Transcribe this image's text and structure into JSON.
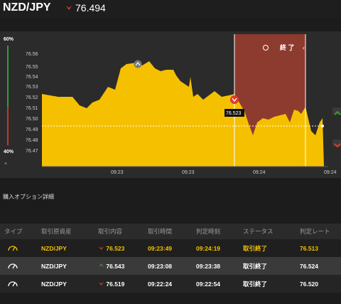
{
  "header": {
    "pair": "NZD/JPY",
    "price": "76.494"
  },
  "gauge": {
    "top_pct": "60%",
    "bottom_pct": "40%",
    "close_label": "×"
  },
  "chart": {
    "y_ticks": [
      "76.56",
      "76.55",
      "76.54",
      "76.53",
      "76.52",
      "76.51",
      "76.50",
      "76.49",
      "76.48",
      "76.47"
    ],
    "x_ticks": [
      "09:23",
      "09:23",
      "09:24",
      "09:24"
    ],
    "entry_label": "76.523",
    "end_label": "終 了",
    "line_color": "#f5c000",
    "zone_color": "#8e3b2f"
  },
  "details": {
    "title": "購入オプション詳細",
    "columns": [
      "タイプ",
      "取引原資産",
      "取引内容",
      "取引時間",
      "判定時刻",
      "ステータス",
      "判定レート"
    ],
    "rows": [
      {
        "asset": "NZD/JPY",
        "dir": "down",
        "rate": "76.523",
        "time": "09:23:49",
        "judge": "09:24:19",
        "status": "取引終了",
        "judge_rate": "76.513"
      },
      {
        "asset": "NZD/JPY",
        "dir": "up",
        "rate": "76.543",
        "time": "09:23:08",
        "judge": "09:23:38",
        "status": "取引終了",
        "judge_rate": "76.524"
      },
      {
        "asset": "NZD/JPY",
        "dir": "down",
        "rate": "76.519",
        "time": "09:22:24",
        "judge": "09:22:54",
        "status": "取引終了",
        "judge_rate": "76.520"
      }
    ]
  }
}
